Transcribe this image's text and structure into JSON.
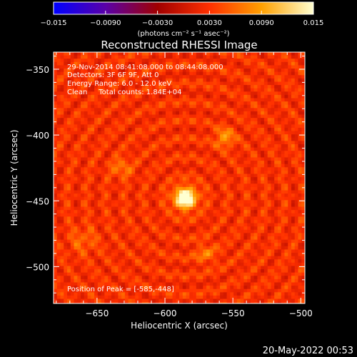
{
  "chart_data": {
    "type": "heatmap",
    "title": "Reconstructed RHESSI Image",
    "xlabel": "Heliocentric X (arcsec)",
    "ylabel": "Heliocentric Y (arcsec)",
    "xlim": [
      -682,
      -497
    ],
    "ylim": [
      -528,
      -337
    ],
    "xticks": [
      -650,
      -600,
      -550,
      -500
    ],
    "yticks": [
      -350,
      -400,
      -450,
      -500
    ],
    "xtick_labels": [
      "−650",
      "−600",
      "−550",
      "−500"
    ],
    "ytick_labels": [
      "−350",
      "−400",
      "−450",
      "−500"
    ],
    "colorbar": {
      "range": [
        -0.015,
        0.015
      ],
      "ticks": [
        -0.015,
        -0.009,
        -0.003,
        0.003,
        0.009,
        0.015
      ],
      "tick_labels": [
        "−0.015",
        "−0.0090",
        "−0.0030",
        "0.0030",
        "0.0090",
        "0.015"
      ],
      "units": "(photons cm⁻² s⁻¹ asec⁻²)",
      "colors": [
        "#0000ff",
        "#5a00a8",
        "#a00000",
        "#ff3000",
        "#ffa000",
        "#ffffd0"
      ]
    },
    "annotations": [
      "29-Nov-2014 08:41:08.000 to 08:44:08.000",
      "Detectors: 3F 6F 9F, Att 0",
      "Energy Range: 6.0 - 12.0 keV",
      "Clean     Total counts: 1.84E+04"
    ],
    "peak_label": "Position of Peak = [-585,-448]",
    "peak": {
      "x": -585,
      "y": -448,
      "value": 0.015
    },
    "sources": [
      {
        "x": -585,
        "y": -448,
        "sigma": 6,
        "value": 0.015
      },
      {
        "x": -556,
        "y": -402,
        "sigma": 5,
        "value": 0.006
      },
      {
        "x": -632,
        "y": -425,
        "sigma": 5,
        "value": 0.0045
      },
      {
        "x": -570,
        "y": -490,
        "sigma": 6,
        "value": 0.0035
      },
      {
        "x": -660,
        "y": -480,
        "sigma": 7,
        "value": 0.003
      }
    ],
    "background_level": 0.0028,
    "background_ripple": 0.0022
  },
  "footer": {
    "date": "20-May-2022 00:53"
  }
}
